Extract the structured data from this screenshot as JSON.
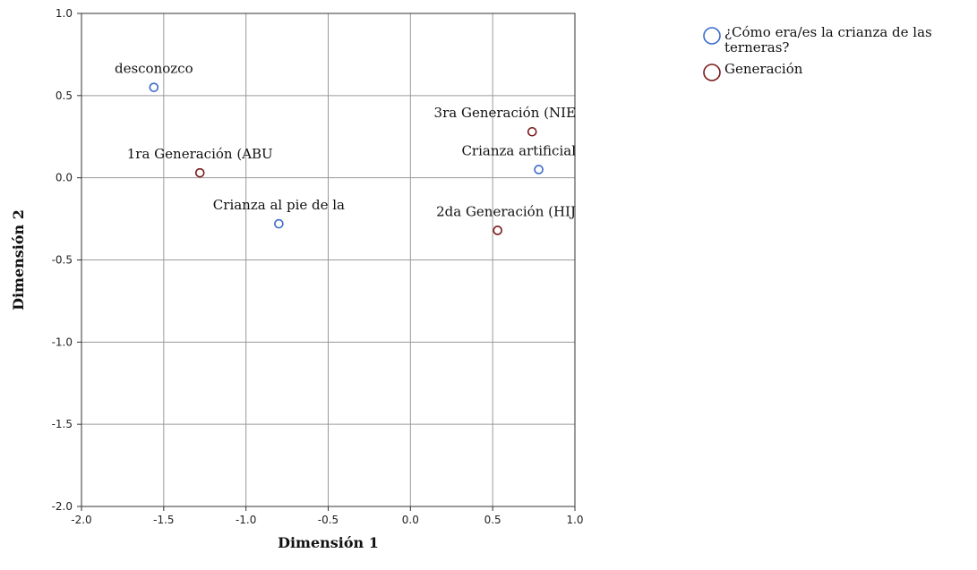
{
  "chart_data": {
    "type": "scatter",
    "xlabel": "Dimensión 1",
    "ylabel": "Dimensión 2",
    "xlim": [
      -2.0,
      1.0
    ],
    "ylim": [
      -2.0,
      1.0
    ],
    "xticks": [
      "-2.0",
      "-1.5",
      "-1.0",
      "-0.5",
      "0.0",
      "0.5",
      "1.0"
    ],
    "yticks": [
      "-2.0",
      "-1.5",
      "-1.0",
      "-0.5",
      "0.0",
      "0.5",
      "1.0"
    ],
    "xtick_values": [
      -2.0,
      -1.5,
      -1.0,
      -0.5,
      0.0,
      0.5,
      1.0
    ],
    "ytick_values": [
      -2.0,
      -1.5,
      -1.0,
      -0.5,
      0.0,
      0.5,
      1.0
    ],
    "grid": true,
    "legend_position": "top-right",
    "series": [
      {
        "name": "¿Cómo era/es la crianza de las terneras?",
        "legend_lines": [
          "¿Cómo era/es la crianza de las",
          "terneras?"
        ],
        "color": "#3b6bc9",
        "points": [
          {
            "label": "desconozco",
            "x": -1.56,
            "y": 0.55
          },
          {
            "label": "Crianza al pie de la",
            "x": -0.8,
            "y": -0.28
          },
          {
            "label": "Crianza artificial",
            "x": 0.78,
            "y": 0.05
          }
        ]
      },
      {
        "name": "Generación",
        "legend_lines": [
          "Generación"
        ],
        "color": "#7a1a1a",
        "points": [
          {
            "label": "1ra Generación (ABU",
            "x": -1.28,
            "y": 0.03
          },
          {
            "label": "3ra Generación (NIE",
            "x": 0.74,
            "y": 0.28
          },
          {
            "label": "2da Generación (HIJ",
            "x": 0.53,
            "y": -0.32
          }
        ]
      }
    ]
  }
}
